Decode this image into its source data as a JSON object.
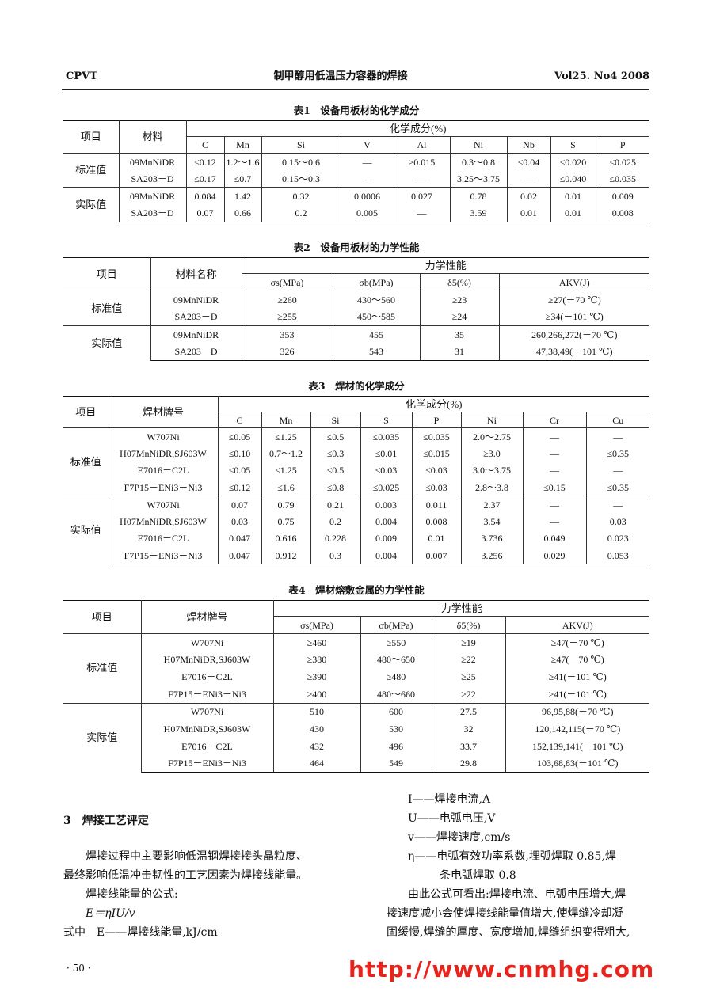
{
  "header": {
    "journal": "CPVT",
    "title": "制甲醇用低温压力容器的焊接",
    "issue": "Vol25. No4 2008"
  },
  "watermark": "http://www.cnmhg.com",
  "tables": [
    {
      "title": "表1　设备用板材的化学成分",
      "head": {
        "item": "项目",
        "material": "材料",
        "group": "化学成分(%)",
        "columns": [
          "C",
          "Mn",
          "Si",
          "V",
          "Al",
          "Ni",
          "Nb",
          "S",
          "P"
        ]
      },
      "groups": [
        {
          "label": "标准值",
          "rows": [
            [
              "09MnNiDR",
              "≤0.12",
              "1.2～1.6",
              "0.15～0.6",
              "—",
              "≥0.015",
              "0.3～0.8",
              "≤0.04",
              "≤0.020",
              "≤0.025"
            ],
            [
              "SA203－D",
              "≤0.17",
              "≤0.7",
              "0.15～0.3",
              "—",
              "—",
              "3.25～3.75",
              "—",
              "≤0.040",
              "≤0.035"
            ]
          ]
        },
        {
          "label": "实际值",
          "rows": [
            [
              "09MnNiDR",
              "0.084",
              "1.42",
              "0.32",
              "0.0006",
              "0.027",
              "0.78",
              "0.02",
              "0.01",
              "0.009"
            ],
            [
              "SA203－D",
              "0.07",
              "0.66",
              "0.2",
              "0.005",
              "—",
              "3.59",
              "0.01",
              "0.01",
              "0.008"
            ]
          ]
        }
      ]
    },
    {
      "title": "表2　设备用板材的力学性能",
      "head": {
        "item": "项目",
        "material": "材料名称",
        "group": "力学性能",
        "columns": [
          "σs(MPa)",
          "σb(MPa)",
          "δ5(%)",
          "AKV(J)"
        ]
      },
      "groups": [
        {
          "label": "标准值",
          "rows": [
            [
              "09MnNiDR",
              "≥260",
              "430～560",
              "≥23",
              "≥27(－70 ℃)"
            ],
            [
              "SA203－D",
              "≥255",
              "450～585",
              "≥24",
              "≥34(－101 ℃)"
            ]
          ]
        },
        {
          "label": "实际值",
          "rows": [
            [
              "09MnNiDR",
              "353",
              "455",
              "35",
              "260,266,272(－70 ℃)"
            ],
            [
              "SA203－D",
              "326",
              "543",
              "31",
              "47,38,49(－101 ℃)"
            ]
          ]
        }
      ]
    },
    {
      "title": "表3　焊材的化学成分",
      "head": {
        "item": "项目",
        "material": "焊材牌号",
        "group": "化学成分(%)",
        "columns": [
          "C",
          "Mn",
          "Si",
          "S",
          "P",
          "Ni",
          "Cr",
          "Cu"
        ]
      },
      "groups": [
        {
          "label": "标准值",
          "rows": [
            [
              "W707Ni",
              "≤0.05",
              "≤1.25",
              "≤0.5",
              "≤0.035",
              "≤0.035",
              "2.0～2.75",
              "—",
              "—"
            ],
            [
              "H07MnNiDR,SJ603W",
              "≤0.10",
              "0.7～1.2",
              "≤0.3",
              "≤0.01",
              "≤0.015",
              "≥3.0",
              "—",
              "≤0.35"
            ],
            [
              "E7016－C2L",
              "≤0.05",
              "≤1.25",
              "≤0.5",
              "≤0.03",
              "≤0.03",
              "3.0～3.75",
              "—",
              "—"
            ],
            [
              "F7P15－ENi3－Ni3",
              "≤0.12",
              "≤1.6",
              "≤0.8",
              "≤0.025",
              "≤0.03",
              "2.8～3.8",
              "≤0.15",
              "≤0.35"
            ]
          ]
        },
        {
          "label": "实际值",
          "rows": [
            [
              "W707Ni",
              "0.07",
              "0.79",
              "0.21",
              "0.003",
              "0.011",
              "2.37",
              "—",
              "—"
            ],
            [
              "H07MnNiDR,SJ603W",
              "0.03",
              "0.75",
              "0.2",
              "0.004",
              "0.008",
              "3.54",
              "—",
              "0.03"
            ],
            [
              "E7016－C2L",
              "0.047",
              "0.616",
              "0.228",
              "0.009",
              "0.01",
              "3.736",
              "0.049",
              "0.023"
            ],
            [
              "F7P15－ENi3－Ni3",
              "0.047",
              "0.912",
              "0.3",
              "0.004",
              "0.007",
              "3.256",
              "0.029",
              "0.053"
            ]
          ]
        }
      ]
    },
    {
      "title": "表4　焊材熔敷金属的力学性能",
      "head": {
        "item": "项目",
        "material": "焊材牌号",
        "group": "力学性能",
        "columns": [
          "σs(MPa)",
          "σb(MPa)",
          "δ5(%)",
          "AKV(J)"
        ]
      },
      "groups": [
        {
          "label": "标准值",
          "rows": [
            [
              "W707Ni",
              "≥460",
              "≥550",
              "≥19",
              "≥47(－70 ℃)"
            ],
            [
              "H07MnNiDR,SJ603W",
              "≥380",
              "480～650",
              "≥22",
              "≥47(－70 ℃)"
            ],
            [
              "E7016－C2L",
              "≥390",
              "≥480",
              "≥25",
              "≥41(－101 ℃)"
            ],
            [
              "F7P15－ENi3－Ni3",
              "≥400",
              "480～660",
              "≥22",
              "≥41(－101 ℃)"
            ]
          ]
        },
        {
          "label": "实际值",
          "rows": [
            [
              "W707Ni",
              "510",
              "600",
              "27.5",
              "96,95,88(－70 ℃)"
            ],
            [
              "H07MnNiDR,SJ603W",
              "430",
              "530",
              "32",
              "120,142,115(－70 ℃)"
            ],
            [
              "E7016－C2L",
              "432",
              "496",
              "33.7",
              "152,139,141(－101 ℃)"
            ],
            [
              "F7P15－ENi3－Ni3",
              "464",
              "549",
              "29.8",
              "103,68,83(－101 ℃)"
            ]
          ]
        }
      ]
    }
  ],
  "body": {
    "section_heading": "3　焊接工艺评定",
    "left": [
      "焊接过程中主要影响低温钢焊接接头晶粒度、",
      "最终影响低温冲击韧性的工艺因素为焊接线能量。",
      "焊接线能量的公式:",
      "E＝ηIU/v",
      "式中　E——焊接线能量,kJ/cm"
    ],
    "right": [
      "I——焊接电流,A",
      "U——电弧电压,V",
      "v——焊接速度,cm/s",
      "η——电弧有效功率系数,埋弧焊取 0.85,焊",
      "条电弧焊取 0.8",
      "由此公式可看出:焊接电流、电弧电压增大,焊",
      "接速度减小会使焊接线能量值增大,使焊缝冷却凝",
      "固缓慢,焊缝的厚度、宽度增加,焊缝组织变得粗大,"
    ]
  },
  "page_number": "· 50 ·"
}
